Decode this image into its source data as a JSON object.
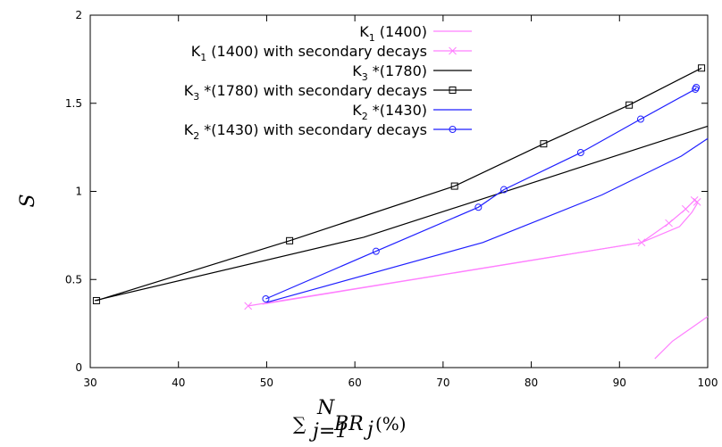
{
  "chart_data": {
    "type": "line",
    "xlim": [
      30,
      100
    ],
    "ylim": [
      0,
      2
    ],
    "x_ticks": [
      "30",
      "40",
      "50",
      "60",
      "70",
      "80",
      "90",
      "100"
    ],
    "y_ticks": [
      "0",
      "0.5",
      "1",
      "1.5",
      "2"
    ],
    "x_tick_values": [
      30,
      40,
      50,
      60,
      70,
      80,
      90,
      100
    ],
    "y_tick_values": [
      0,
      0.5,
      1,
      1.5,
      2
    ],
    "ylabel": "S",
    "xlabel": {
      "sum_symbol": "∑",
      "sum_upper": "N",
      "sum_lower": "j=1",
      "variable": "BR",
      "subscript": "j",
      "unit": "(%)"
    },
    "legend_position": "top-right",
    "series": [
      {
        "name_main": "K",
        "name_sub": "1",
        "name_rest": " (1400)",
        "color": "#ff7fff",
        "marker": "none",
        "segments": [
          {
            "x": [
              49.5,
              92.5,
              96.8,
              98.2,
              98.8
            ],
            "y": [
              0.36,
              0.71,
              0.8,
              0.88,
              0.93
            ]
          },
          {
            "x": [
              94,
              96,
              98,
              100
            ],
            "y": [
              0.05,
              0.15,
              0.22,
              0.29
            ]
          }
        ]
      },
      {
        "name_main": "K",
        "name_sub": "1",
        "name_rest": " (1400) with secondary decays",
        "color": "#ff7fff",
        "marker": "x",
        "segments": [
          {
            "x": [
              47.9,
              92.5,
              95.6,
              97.5,
              98.5,
              98.8
            ],
            "y": [
              0.35,
              0.71,
              0.82,
              0.9,
              0.95,
              0.94
            ]
          }
        ]
      },
      {
        "name_main": "K",
        "name_sub": "3",
        "name_rest": " *(1780)",
        "color": "#000000",
        "marker": "none",
        "segments": [
          {
            "x": [
              30.5,
              61,
              100
            ],
            "y": [
              0.38,
              0.74,
              1.37
            ]
          }
        ]
      },
      {
        "name_main": "K",
        "name_sub": "3",
        "name_rest": " *(1780) with secondary decays",
        "color": "#000000",
        "marker": "square",
        "segments": [
          {
            "x": [
              30.7,
              52.6,
              71.3,
              81.4,
              91.1,
              99.3
            ],
            "y": [
              0.38,
              0.72,
              1.03,
              1.27,
              1.49,
              1.7
            ]
          }
        ]
      },
      {
        "name_main": "K",
        "name_sub": "2",
        "name_rest": " *(1430)",
        "color": "#1f1fff",
        "marker": "none",
        "segments": [
          {
            "x": [
              50,
              74.5,
              88,
              97,
              100
            ],
            "y": [
              0.37,
              0.71,
              0.98,
              1.2,
              1.3
            ]
          }
        ]
      },
      {
        "name_main": "K",
        "name_sub": "2",
        "name_rest": " *(1430) with secondary decays",
        "color": "#1f1fff",
        "marker": "circle",
        "segments": [
          {
            "x": [
              49.9,
              62.4,
              74,
              76.9,
              85.6,
              92.4,
              98.6,
              98.7
            ],
            "y": [
              0.39,
              0.66,
              0.91,
              1.01,
              1.22,
              1.41,
              1.58,
              1.59
            ]
          }
        ]
      }
    ]
  }
}
